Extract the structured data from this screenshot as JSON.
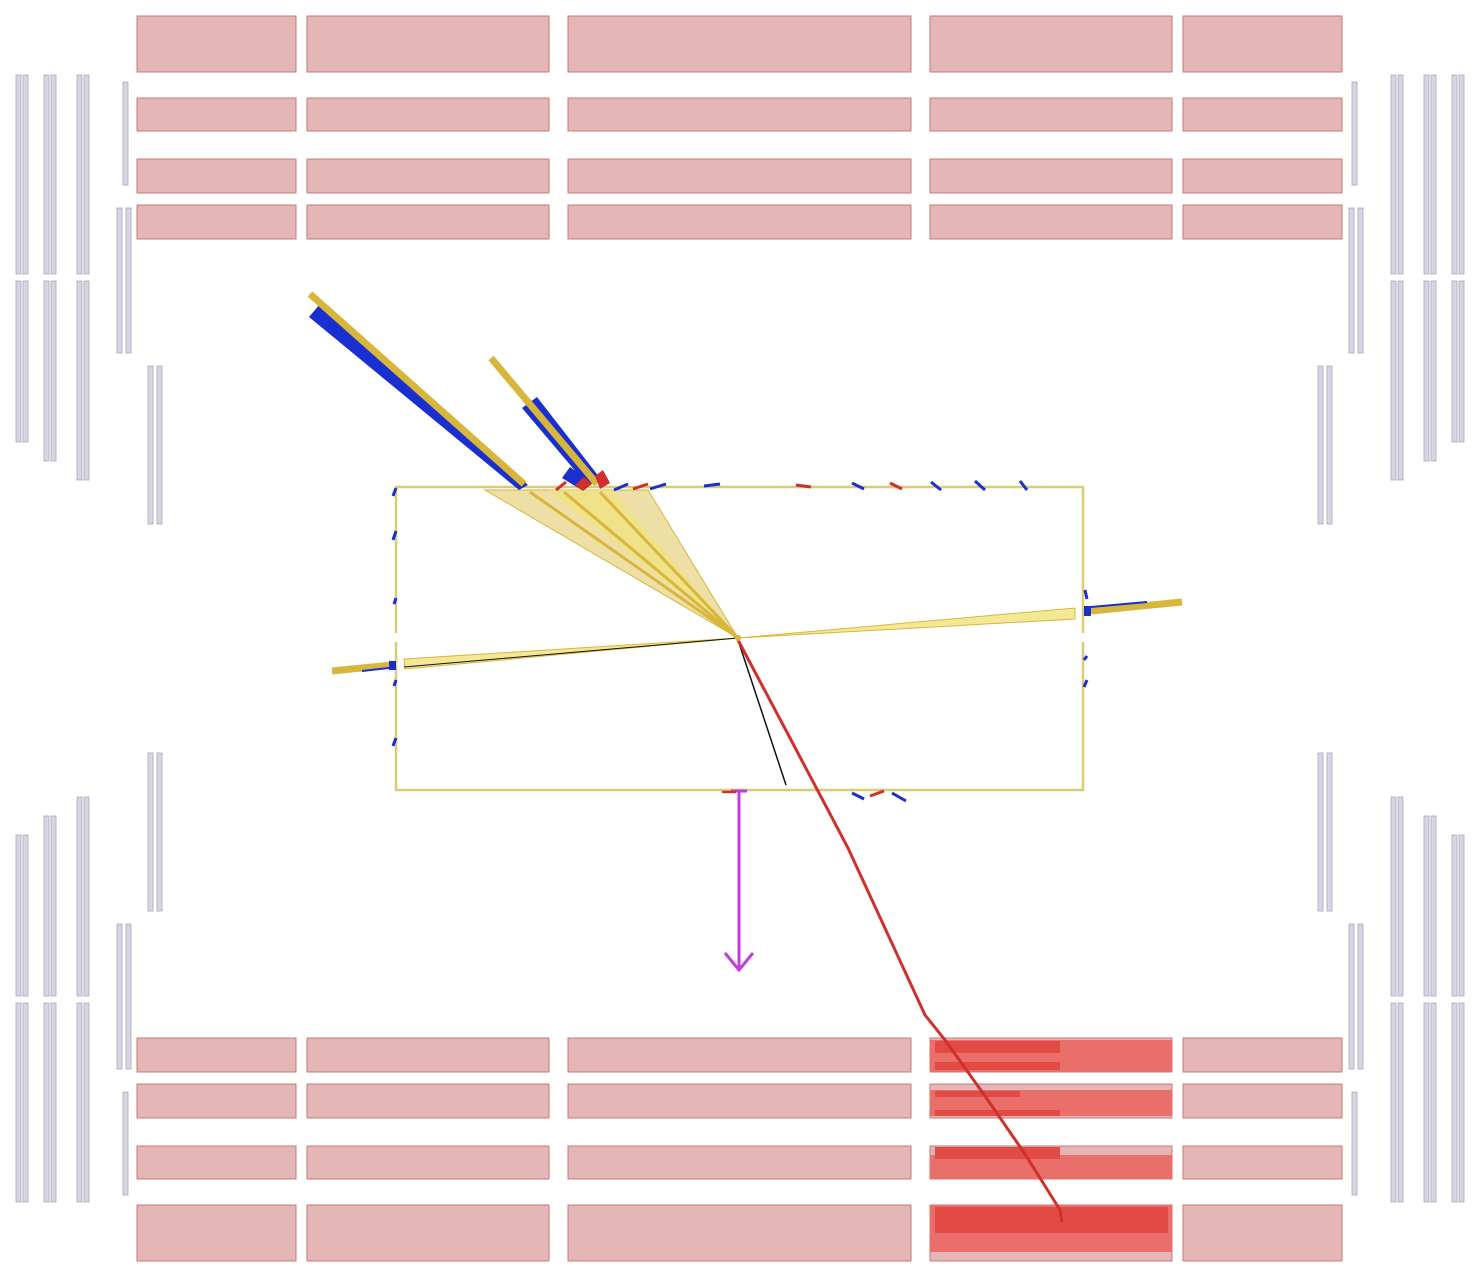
{
  "event_display": {
    "title": "",
    "view": "longitudinal",
    "colors": {
      "muon_chamber": "#e5b6b6",
      "muon_chamber_stroke": "#c97878",
      "muon_chamber_hit": "#e24a46",
      "muon_chamber_hit_light": "#ea6e6a",
      "forward_chamber": "#d6d6e2",
      "forward_chamber_stroke": "#a9a9bf",
      "calorimeter_outline": "#d9cc73",
      "jet_cone": "#e8d48a",
      "jet_core": "#f0e27a",
      "jet_axis": "#d8b63c",
      "ecal_deposit": "#1a2fd0",
      "hcal_deposit": "#d0302a",
      "muon_track": "#d0302a",
      "missing_energy": "#c43be0",
      "charged_track": "#111111"
    },
    "icons": {
      "missing_energy_marker": "down-arrow-icon"
    },
    "objects": {
      "jets": 4,
      "muons": 1,
      "missing_transverse_energy": 1,
      "charged_tracks": 1
    }
  }
}
